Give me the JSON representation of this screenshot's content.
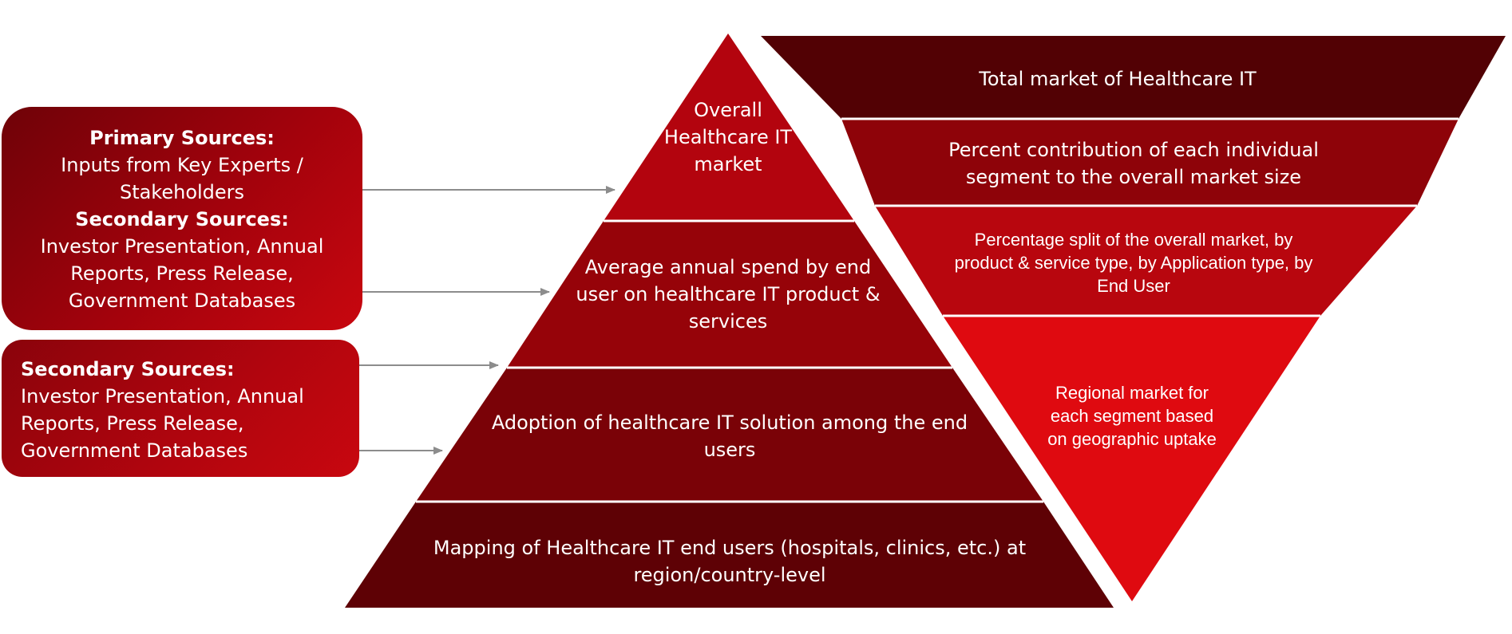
{
  "left_boxes": [
    {
      "primary_heading": "Primary Sources:",
      "primary_lines": [
        "Inputs from Key Experts /",
        "Stakeholders"
      ],
      "secondary_heading": "Secondary Sources:",
      "secondary_lines": [
        "Investor Presentation, Annual",
        "Reports, Press Release,",
        "Government Databases"
      ]
    },
    {
      "secondary_heading": "Secondary Sources:",
      "secondary_lines": [
        "Investor Presentation, Annual",
        "Reports, Press Release,",
        "Government Databases"
      ]
    }
  ],
  "pyramid_levels": [
    {
      "lines": [
        "Overall",
        "Healthcare IT",
        "market"
      ],
      "color": "#b3040e"
    },
    {
      "lines": [
        "Average annual spend by end",
        "user on healthcare IT product &",
        "services"
      ],
      "color": "#960309"
    },
    {
      "lines": [
        "Adoption of healthcare IT solution among the end",
        "users"
      ],
      "color": "#7a0207"
    },
    {
      "lines": [
        "Mapping of Healthcare IT end users (hospitals, clinics, etc.) at",
        "region/country-level"
      ],
      "color": "#5e0105"
    }
  ],
  "inverted_levels": [
    {
      "lines": [
        "Total market of Healthcare IT"
      ],
      "color": "#520104"
    },
    {
      "lines": [
        "Percent contribution of each individual",
        "segment to the overall market size"
      ],
      "color": "#8e0309"
    },
    {
      "lines": [
        "Percentage split of the overall market, by",
        "product & service type, by Application type, by",
        "End User"
      ],
      "color": "#b8060e"
    },
    {
      "lines": [
        "Regional market for",
        "each segment based",
        "on geographic uptake"
      ],
      "color": "#df0a10"
    }
  ],
  "colors": {
    "arrow": "#8c8c8c",
    "divider": "#ffffff"
  }
}
